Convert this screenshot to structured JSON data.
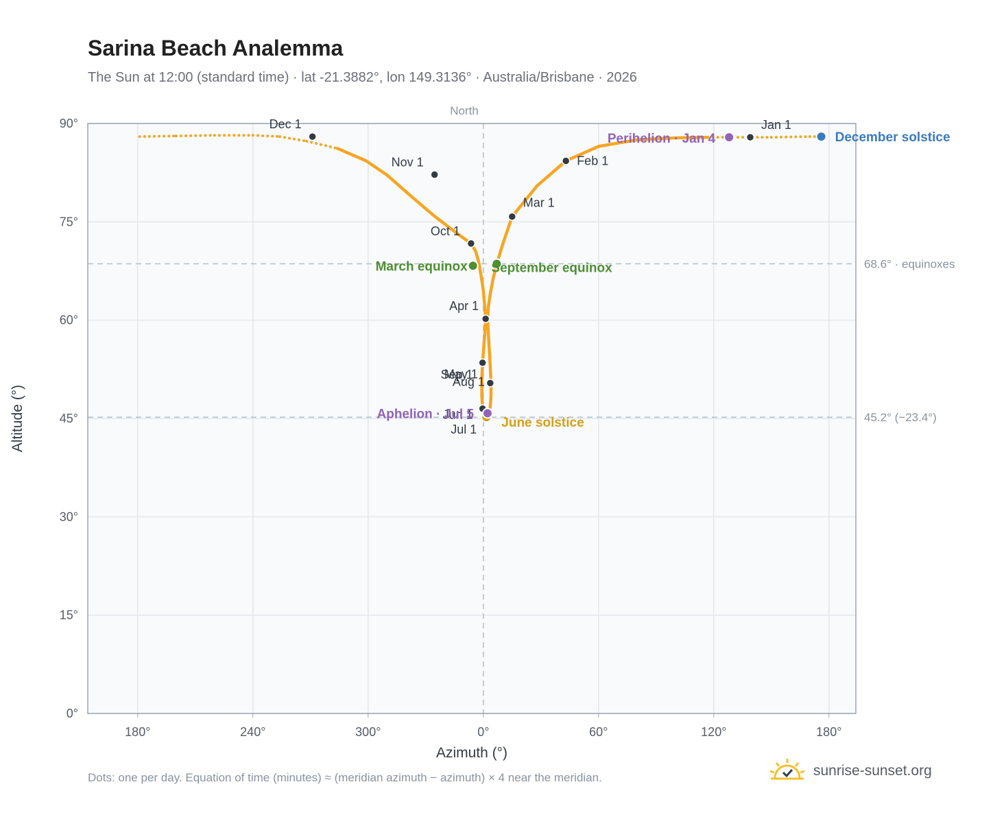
{
  "header": {
    "title": "Sarina Beach Analemma",
    "subtitle": "The Sun at 12:00 (standard time) · lat -21.3882°, lon 149.3136° · Australia/Brisbane · 2026"
  },
  "footer": {
    "note": "Dots: one per day. Equation of time (minutes) ≈ (meridian azimuth − azimuth) × 4 near the meridian.",
    "brand": "sunrise-sunset.org"
  },
  "colors": {
    "path": "#f5a623",
    "month_dot": "#333a44",
    "equinox": "#4f8f32",
    "solstice_june": "#d4a017",
    "solstice_dec": "#3b7bbf",
    "apsis": "#9064b8",
    "grid": "#e3e7ec",
    "frame": "#9aa4b2",
    "ref_line": "#b4bec8",
    "plot_bg": "#f8fafc"
  },
  "chart_data": {
    "type": "scatter",
    "xlabel": "Azimuth (°)",
    "ylabel": "Altitude (°)",
    "top_label": "North",
    "xlim": [
      167,
      367
    ],
    "ylim": [
      0,
      90
    ],
    "grid": true,
    "x_ticks": [
      {
        "value": 180,
        "label": "180°"
      },
      {
        "value": 210,
        "label": "240°"
      },
      {
        "value": 240,
        "label": "300°"
      },
      {
        "value": 270,
        "label": "0°"
      },
      {
        "value": 300,
        "label": "60°"
      },
      {
        "value": 330,
        "label": "120°"
      },
      {
        "value": 360,
        "label": "180°"
      }
    ],
    "y_ticks": [
      {
        "value": 0,
        "label": "0°"
      },
      {
        "value": 15,
        "label": "15°"
      },
      {
        "value": 30,
        "label": "30°"
      },
      {
        "value": 45,
        "label": "45°"
      },
      {
        "value": 60,
        "label": "60°"
      },
      {
        "value": 75,
        "label": "75°"
      },
      {
        "value": 90,
        "label": "90°"
      }
    ],
    "ref_lines": [
      {
        "axis": "y",
        "value": 68.6,
        "label": "68.6° · equinoxes"
      },
      {
        "axis": "y",
        "value": 45.2,
        "label": "45.2° (−23.4°)"
      },
      {
        "axis": "x",
        "value": 270,
        "label": ""
      }
    ],
    "path": [
      [
        180.5,
        88.0
      ],
      [
        190,
        88.1
      ],
      [
        200,
        88.2
      ],
      [
        210,
        88.2
      ],
      [
        217,
        88.0
      ],
      [
        224,
        87.3
      ],
      [
        232,
        86.2
      ],
      [
        239.5,
        84.3
      ],
      [
        245,
        82.1
      ],
      [
        251,
        79.0
      ],
      [
        257,
        76.0
      ],
      [
        263,
        73.3
      ],
      [
        266.8,
        71.7
      ],
      [
        268.0,
        70.5
      ],
      [
        268.6,
        69.3
      ],
      [
        269.0,
        68.2
      ],
      [
        269.5,
        66.5
      ],
      [
        270.0,
        64.5
      ],
      [
        270.3,
        62.5
      ],
      [
        270.6,
        60.2
      ],
      [
        270.4,
        58.0
      ],
      [
        270.0,
        55.0
      ],
      [
        269.8,
        53.5
      ],
      [
        269.6,
        51.0
      ],
      [
        269.6,
        48.5
      ],
      [
        269.8,
        46.5
      ],
      [
        270.3,
        45.7
      ],
      [
        270.8,
        45.2
      ],
      [
        271.3,
        45.5
      ],
      [
        271.8,
        46.8
      ],
      [
        272.0,
        48.5
      ],
      [
        272.0,
        50.5
      ],
      [
        271.8,
        53.0
      ],
      [
        271.5,
        56.0
      ],
      [
        271.1,
        60.0
      ],
      [
        271.3,
        62.0
      ],
      [
        271.8,
        64.0
      ],
      [
        272.6,
        66.5
      ],
      [
        273.5,
        68.6
      ],
      [
        275.0,
        71.5
      ],
      [
        277.5,
        75.8
      ],
      [
        284,
        80.5
      ],
      [
        291.5,
        84.3
      ],
      [
        300,
        86.5
      ],
      [
        310,
        87.5
      ],
      [
        320,
        87.8
      ],
      [
        328.5,
        87.9
      ],
      [
        335,
        87.9
      ],
      [
        345,
        87.9
      ],
      [
        355,
        88.0
      ],
      [
        358,
        88.0
      ]
    ],
    "dotted_segments": [
      [
        180.5,
        248
      ],
      [
        326,
        364
      ]
    ],
    "months": [
      {
        "label": "Jan 1",
        "x": 339.5,
        "y": 87.9
      },
      {
        "label": "Feb 1",
        "x": 291.5,
        "y": 84.3
      },
      {
        "label": "Mar 1",
        "x": 277.5,
        "y": 75.8
      },
      {
        "label": "Apr 1",
        "x": 270.6,
        "y": 60.2
      },
      {
        "label": "May 1",
        "x": 271.8,
        "y": 50.4
      },
      {
        "label": "Jun 1",
        "x": 269.8,
        "y": 46.5
      },
      {
        "label": "Jul 1",
        "x": 270.8,
        "y": 45.2
      },
      {
        "label": "Aug 1",
        "x": 271.8,
        "y": 50.4
      },
      {
        "label": "Sep 1",
        "x": 269.8,
        "y": 53.5
      },
      {
        "label": "Oct 1",
        "x": 266.8,
        "y": 71.7
      },
      {
        "label": "Nov 1",
        "x": 257.3,
        "y": 82.2
      },
      {
        "label": "Dec 1",
        "x": 225.5,
        "y": 88.0
      }
    ],
    "events": [
      {
        "label": "March equinox",
        "x": 267.3,
        "y": 68.3,
        "color_key": "equinox"
      },
      {
        "label": "September equinox",
        "x": 273.5,
        "y": 68.6,
        "color_key": "equinox"
      },
      {
        "label": "June solstice",
        "x": 270.8,
        "y": 45.2,
        "color_key": "solstice_june"
      },
      {
        "label": "December solstice",
        "x": 358.0,
        "y": 88.0,
        "color_key": "solstice_dec"
      },
      {
        "label": "Perihelion · Jan 4",
        "x": 334.0,
        "y": 87.9,
        "color_key": "apsis"
      },
      {
        "label": "Aphelion · Jul 5",
        "x": 271.1,
        "y": 45.8,
        "color_key": "apsis"
      }
    ]
  }
}
